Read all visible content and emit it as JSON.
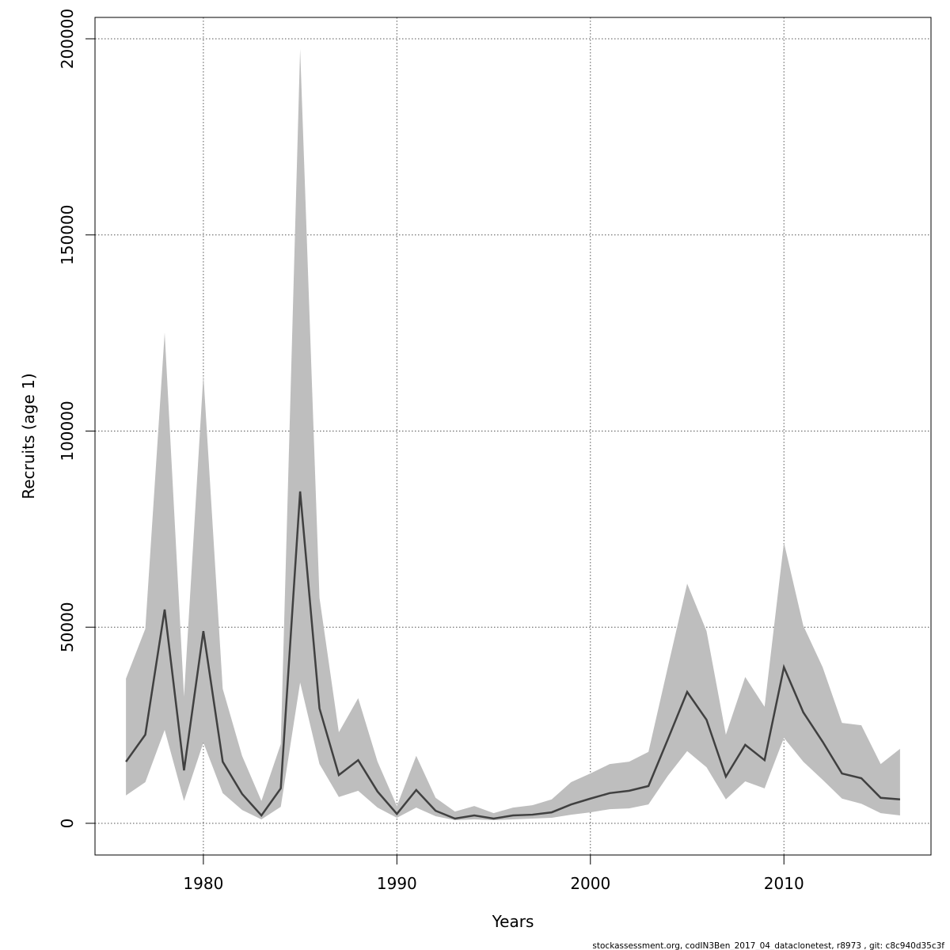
{
  "chart_data": {
    "type": "line",
    "xlabel": "Years",
    "ylabel": "Recruits (age 1)",
    "footer": "stockassessment.org, codIN3Ben_2017_04_dataclonetest, r8973 , git: c8c940d35c3f",
    "x": [
      1976,
      1977,
      1978,
      1979,
      1980,
      1981,
      1982,
      1983,
      1984,
      1985,
      1986,
      1987,
      1988,
      1989,
      1990,
      1991,
      1992,
      1993,
      1994,
      1995,
      1996,
      1997,
      1998,
      1999,
      2000,
      2001,
      2002,
      2003,
      2004,
      2005,
      2006,
      2007,
      2008,
      2009,
      2010,
      2011,
      2012,
      2013,
      2014,
      2015,
      2016
    ],
    "series": [
      {
        "color": "#404040",
        "values": [
          15700,
          22600,
          54500,
          13500,
          49000,
          15700,
          7500,
          2000,
          8900,
          84600,
          29300,
          12300,
          16100,
          8100,
          2400,
          8500,
          3200,
          1200,
          2000,
          1200,
          2000,
          2200,
          2800,
          4800,
          6300,
          7700,
          8300,
          9500,
          21400,
          33500,
          26400,
          11900,
          20000,
          16100,
          39800,
          28300,
          20800,
          12700,
          11500,
          6500,
          6100
        ]
      }
    ],
    "band": {
      "color": "#bebebe",
      "upper": [
        36900,
        49600,
        125100,
        32300,
        114400,
        34300,
        17200,
        5700,
        20200,
        197400,
        57500,
        23200,
        31900,
        15700,
        4400,
        17200,
        6500,
        3000,
        4400,
        2600,
        4000,
        4600,
        6100,
        10500,
        12700,
        15100,
        15700,
        18200,
        39800,
        61100,
        49000,
        22600,
        37300,
        29700,
        71600,
        50400,
        39800,
        25600,
        25000,
        15100,
        19000
      ],
      "lower": [
        7100,
        10500,
        23800,
        5700,
        20600,
        7700,
        3400,
        1000,
        4200,
        35900,
        15100,
        6700,
        8300,
        4000,
        1400,
        4000,
        1800,
        800,
        1000,
        800,
        1000,
        1200,
        1400,
        2200,
        2800,
        3600,
        3800,
        4800,
        12100,
        18400,
        14300,
        6100,
        10700,
        8900,
        21800,
        15700,
        11100,
        6300,
        5000,
        2600,
        2000
      ]
    },
    "xlim": [
      1974.4,
      2017.6
    ],
    "ylim": [
      -8080,
      205450
    ],
    "xticks": [
      1980,
      1990,
      2000,
      2010
    ],
    "yticks": [
      0,
      50000,
      100000,
      150000,
      200000
    ],
    "grid": true
  }
}
